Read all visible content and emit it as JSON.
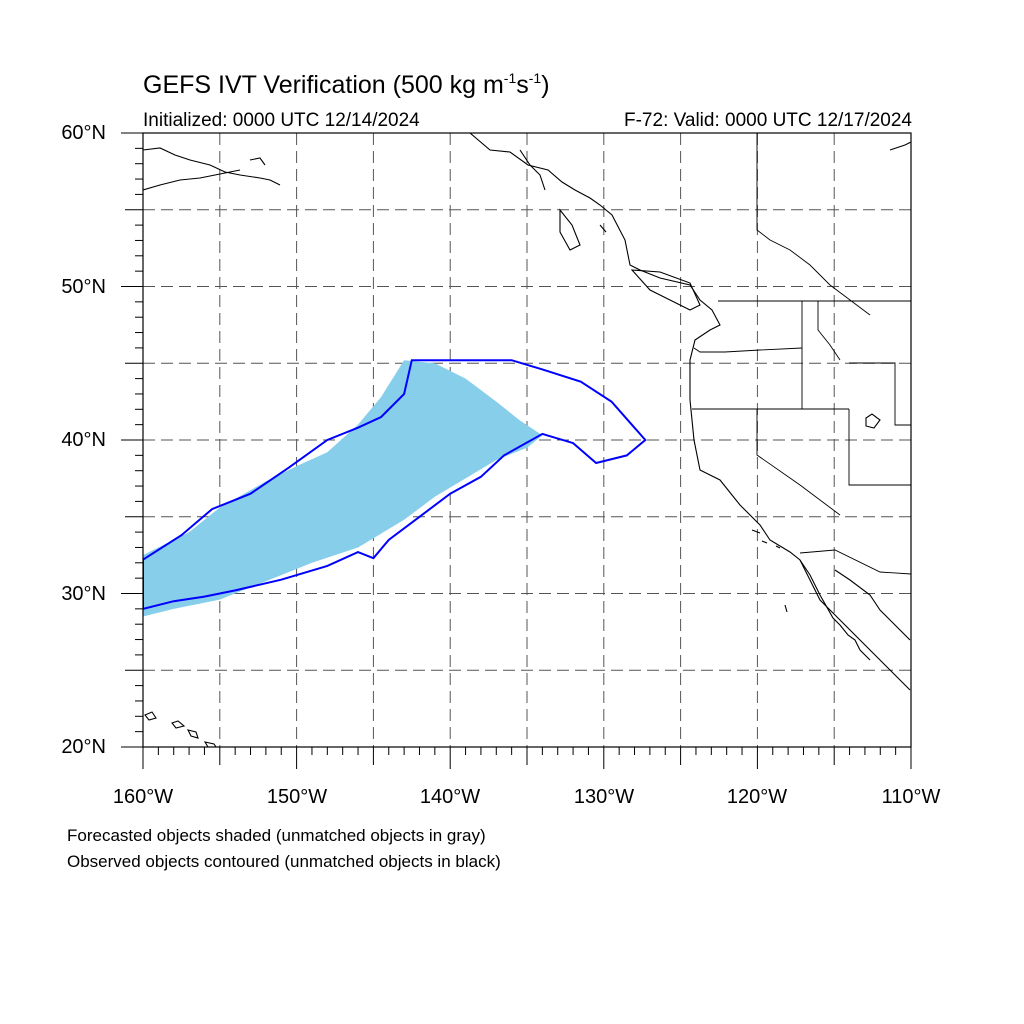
{
  "title": {
    "text": "GEFS IVT Verification (500 kg m",
    "sup1": "-1",
    "mid": "s",
    "sup2": "-1",
    "end": ")"
  },
  "subtitle_left": "Initialized: 0000 UTC 12/14/2024",
  "subtitle_right": "F-72: Valid: 0000 UTC 12/17/2024",
  "y_labels": [
    "60°N",
    "50°N",
    "40°N",
    "30°N",
    "20°N"
  ],
  "x_labels": [
    "160°W",
    "150°W",
    "140°W",
    "130°W",
    "120°W",
    "110°W"
  ],
  "notes": [
    "Forecasted objects shaded (unmatched objects in gray)",
    "Observed objects contoured (unmatched objects in black)"
  ],
  "colors": {
    "forecast_fill": "#87ceeb",
    "observed_contour": "#0000ff",
    "coast": "#000000",
    "grid": "#555555"
  },
  "chart_data": {
    "type": "map",
    "projection": "cylindrical equidistant",
    "lon_range": [
      -160,
      -110
    ],
    "lat_range": [
      20,
      60
    ],
    "grid": "dashed every 5 degrees",
    "forecast_object_polygon": [
      [
        -160,
        28.5
      ],
      [
        -158,
        29
      ],
      [
        -155,
        29.6
      ],
      [
        -152,
        30.8
      ],
      [
        -149,
        32
      ],
      [
        -146,
        33
      ],
      [
        -143,
        34.8
      ],
      [
        -141,
        36.3
      ],
      [
        -139,
        37.5
      ],
      [
        -137,
        38.7
      ],
      [
        -135,
        39.5
      ],
      [
        -134,
        40.3
      ],
      [
        -135.5,
        41.3
      ],
      [
        -137,
        42.5
      ],
      [
        -139,
        44
      ],
      [
        -141,
        45
      ],
      [
        -143,
        45.2
      ],
      [
        -144.5,
        42.8
      ],
      [
        -146,
        41
      ],
      [
        -148,
        39.2
      ],
      [
        -150,
        38.3
      ],
      [
        -152,
        37.3
      ],
      [
        -155,
        35.6
      ],
      [
        -157,
        34
      ],
      [
        -160,
        32.5
      ]
    ],
    "observed_object_polygon": [
      [
        -160,
        29
      ],
      [
        -158,
        29.5
      ],
      [
        -156,
        29.8
      ],
      [
        -154,
        30.2
      ],
      [
        -151,
        30.9
      ],
      [
        -148,
        31.8
      ],
      [
        -146,
        32.7
      ],
      [
        -145,
        32.3
      ],
      [
        -144,
        33.5
      ],
      [
        -142,
        35
      ],
      [
        -140,
        36.5
      ],
      [
        -138,
        37.6
      ],
      [
        -136.5,
        39
      ],
      [
        -134,
        40.4
      ],
      [
        -132,
        39.8
      ],
      [
        -130.5,
        38.5
      ],
      [
        -128.5,
        39
      ],
      [
        -127.3,
        40
      ],
      [
        -129.5,
        42.5
      ],
      [
        -131.5,
        43.8
      ],
      [
        -134,
        44.6
      ],
      [
        -136,
        45.2
      ],
      [
        -142.5,
        45.2
      ],
      [
        -143,
        43
      ],
      [
        -144.5,
        41.5
      ],
      [
        -146,
        40.8
      ],
      [
        -148,
        40
      ],
      [
        -150.5,
        38.2
      ],
      [
        -153,
        36.5
      ],
      [
        -155.5,
        35.5
      ],
      [
        -157.5,
        33.8
      ],
      [
        -160,
        32.2
      ]
    ]
  }
}
